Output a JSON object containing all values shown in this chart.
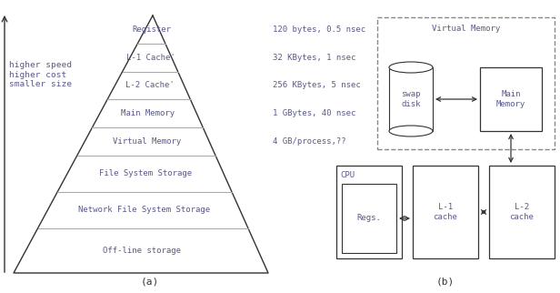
{
  "bg_color": "#ffffff",
  "text_color": "#5a5a8a",
  "pyramid_color": "#888888",
  "pyramid_layers": [
    "Register",
    "L-1 Cache'",
    "L-2 Cache'",
    "Main Memory",
    "Virtual Memory",
    "File System Storage",
    "Network File System Storage",
    "Off-line storage"
  ],
  "annotations": [
    [
      "120 bytes, 0.5 nsec",
      0
    ],
    [
      "32 KBytes, 1 nsec",
      1
    ],
    [
      "256 KBytes, 5 nsec",
      2
    ],
    [
      "1 GBytes, 40 nsec",
      3
    ],
    [
      "4 GB/process,??",
      4
    ]
  ],
  "left_label": "higher speed\nhigher cost\nsmaller size",
  "label_a": "(a)",
  "label_b": "(b)",
  "vm_label": "Virtual Memory",
  "swap_label": "swap\ndisk",
  "main_mem_label": "Main\nMemory",
  "cpu_label": "CPU",
  "regs_label": "Regs.",
  "l1_label": "L-1\ncache",
  "l2_label": "L-2\ncache",
  "arrow_color": "#333333",
  "box_color": "#333333"
}
